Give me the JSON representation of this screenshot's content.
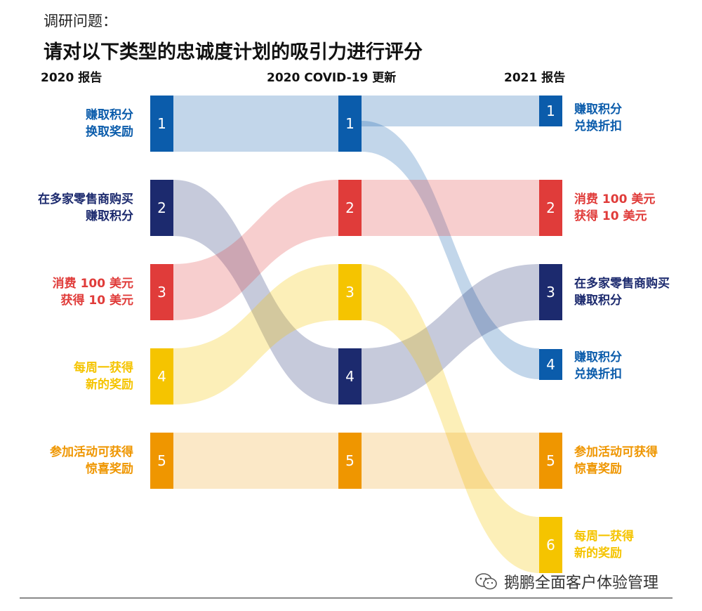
{
  "header": {
    "subtitle": "调研问题：",
    "title": "请对以下类型的忠诚度计划的吸引力进行评分"
  },
  "columns": {
    "left": "2020 报告",
    "middle": "2020 COVID-19 更新",
    "right": "2021 报告"
  },
  "colors": {
    "blue": "#0b5cab",
    "navy": "#1c2a6e",
    "red": "#e03c3a",
    "yellow": "#f5c400",
    "orange": "#ef9600"
  },
  "programs": {
    "earn_redeem": "赚取积分换取奖励",
    "multi_retailer": "在多家零售商购买赚取积分",
    "spend_get": "消费 100 美元获得 10 美元",
    "weekly": "每周一获得新的奖励",
    "surprise": "参加活动可获得惊喜奖励",
    "earn_discount": "赚取积分兑换折扣"
  },
  "left_labels": [
    {
      "rank": "1",
      "lines": [
        "赚取积分",
        "换取奖励"
      ],
      "color": "blue"
    },
    {
      "rank": "2",
      "lines": [
        "在多家零售商购买",
        "赚取积分"
      ],
      "color": "navy"
    },
    {
      "rank": "3",
      "lines": [
        "消费 100 美元",
        "获得 10 美元"
      ],
      "color": "red"
    },
    {
      "rank": "4",
      "lines": [
        "每周一获得",
        "新的奖励"
      ],
      "color": "yellow"
    },
    {
      "rank": "5",
      "lines": [
        "参加活动可获得",
        "惊喜奖励"
      ],
      "color": "orange"
    }
  ],
  "middle_ranks": [
    {
      "rank": "1",
      "color": "blue"
    },
    {
      "rank": "2",
      "color": "red"
    },
    {
      "rank": "3",
      "color": "yellow"
    },
    {
      "rank": "4",
      "color": "navy"
    },
    {
      "rank": "5",
      "color": "orange"
    }
  ],
  "right_labels": [
    {
      "rank": "1",
      "lines": [
        "赚取积分",
        "兑换折扣"
      ],
      "color": "blue"
    },
    {
      "rank": "2",
      "lines": [
        "消费 100 美元",
        "获得 10 美元"
      ],
      "color": "red"
    },
    {
      "rank": "3",
      "lines": [
        "在多家零售商购买",
        "赚取积分"
      ],
      "color": "navy"
    },
    {
      "rank": "4",
      "lines": [
        "赚取积分",
        "兑换折扣"
      ],
      "color": "blue"
    },
    {
      "rank": "5",
      "lines": [
        "参加活动可获得",
        "惊喜奖励"
      ],
      "color": "orange"
    },
    {
      "rank": "6",
      "lines": [
        "每周一获得",
        "新的奖励"
      ],
      "color": "yellow"
    }
  ],
  "flows": [
    {
      "color": "blue",
      "from_rank": 1,
      "mid_rank": 1,
      "to_rank": 1
    },
    {
      "color": "blue",
      "from_rank": 1,
      "mid_rank": 1,
      "to_rank": 4
    },
    {
      "color": "navy",
      "from_rank": 2,
      "mid_rank": 4,
      "to_rank": 3
    },
    {
      "color": "red",
      "from_rank": 3,
      "mid_rank": 2,
      "to_rank": 2
    },
    {
      "color": "yellow",
      "from_rank": 4,
      "mid_rank": 3,
      "to_rank": 6
    },
    {
      "color": "orange",
      "from_rank": 5,
      "mid_rank": 5,
      "to_rank": 5
    }
  ],
  "watermark": {
    "icon": "wechat-icon",
    "text": "鹅鹏全面客户体验管理"
  }
}
